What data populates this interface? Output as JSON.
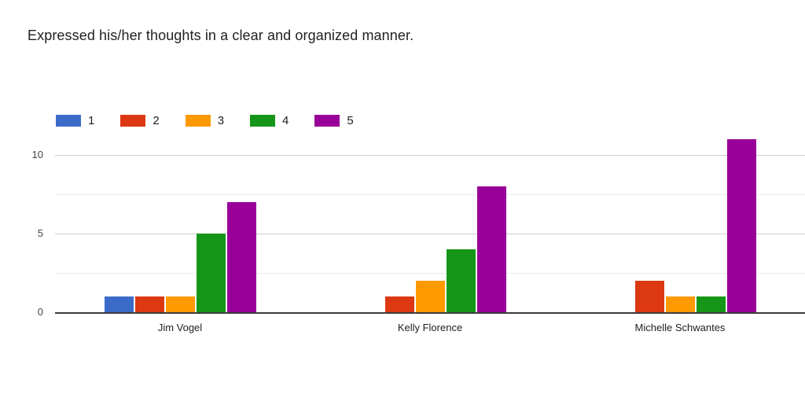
{
  "title": "Expressed his/her thoughts in a clear and organized manner.",
  "chart_data": {
    "type": "bar",
    "title": "Expressed his/her thoughts in a clear and organized manner.",
    "categories": [
      "Jim Vogel",
      "Kelly Florence",
      "Michelle Schwantes"
    ],
    "series": [
      {
        "name": "1",
        "color": "#3b6bc8",
        "values": [
          1,
          0,
          0
        ]
      },
      {
        "name": "2",
        "color": "#dc3912",
        "values": [
          1,
          1,
          2
        ]
      },
      {
        "name": "3",
        "color": "#ff9900",
        "values": [
          1,
          2,
          1
        ]
      },
      {
        "name": "4",
        "color": "#159618",
        "values": [
          5,
          4,
          1
        ]
      },
      {
        "name": "5",
        "color": "#990099",
        "values": [
          7,
          8,
          11
        ]
      }
    ],
    "xlabel": "",
    "ylabel": "",
    "ylim": [
      0,
      11
    ],
    "yticks": [
      0,
      5,
      10
    ],
    "minor_gridlines": [
      2.5,
      7.5
    ],
    "major_gridlines": [
      5,
      10
    ],
    "grid": true,
    "legend_position": "top",
    "colors": {
      "axis_line": "#3c3c3c",
      "major_gridline": "#cccccc",
      "minor_gridline": "#ebebeb",
      "tick_label": "#444444",
      "category_label": "#212121",
      "background": "#ffffff"
    }
  }
}
